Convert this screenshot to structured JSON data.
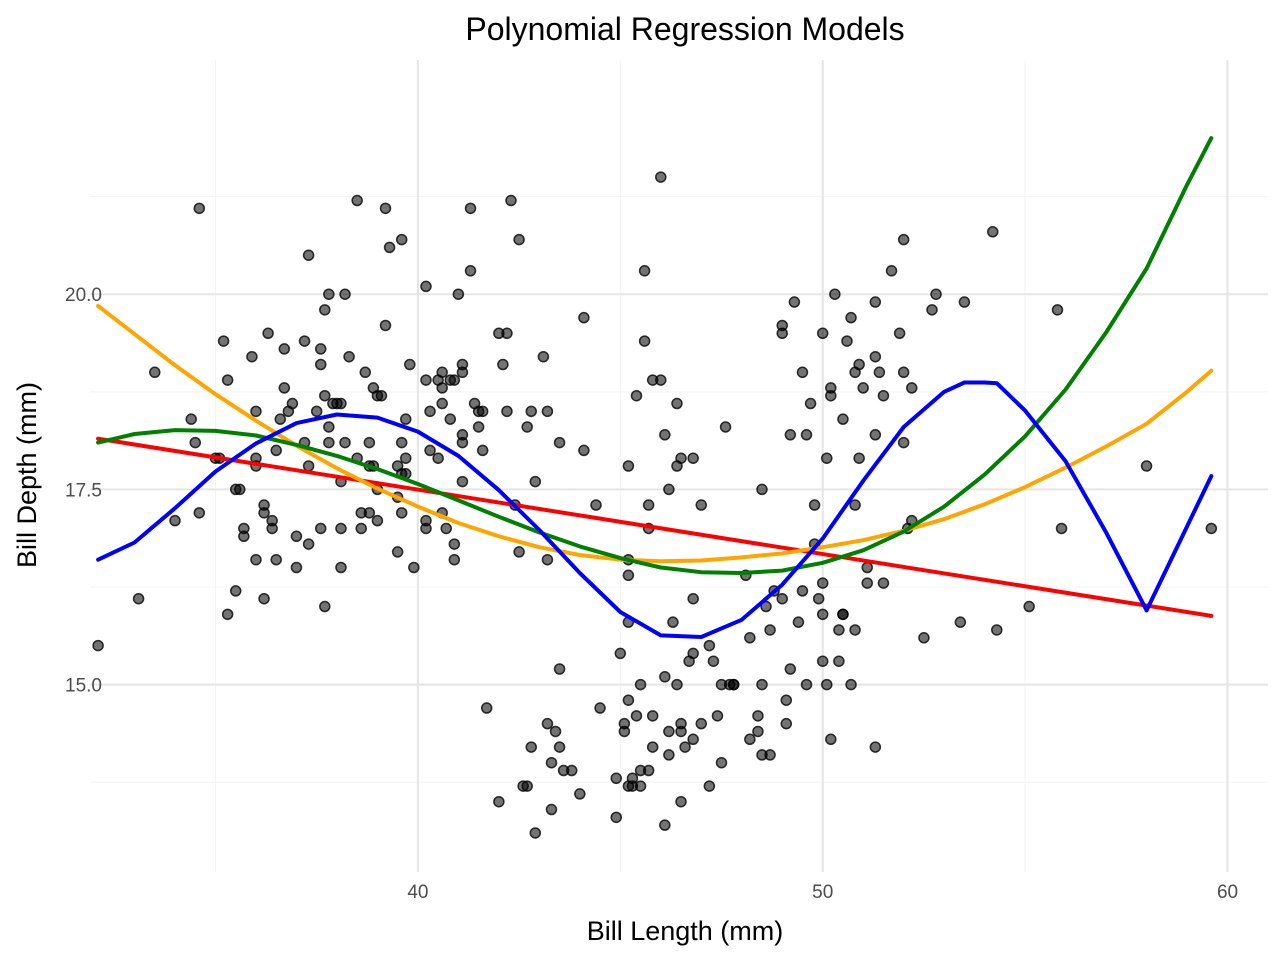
{
  "chart_data": {
    "type": "scatter",
    "title": "Polynomial Regression Models",
    "xlabel": "Bill Length (mm)",
    "ylabel": "Bill Depth (mm)",
    "xlim": [
      31.9,
      61.0
    ],
    "ylim": [
      12.6,
      23.0
    ],
    "x_ticks": [
      40,
      50,
      60
    ],
    "x_tick_labels": [
      "40",
      "50",
      "60"
    ],
    "y_ticks": [
      15.0,
      17.5,
      20.0
    ],
    "y_tick_labels": [
      "15.0",
      "17.5",
      "20.0"
    ],
    "grid": true,
    "legend": "none",
    "point_color": "#000000",
    "points": [
      [
        32.1,
        15.5
      ],
      [
        33.1,
        16.1
      ],
      [
        33.5,
        19.0
      ],
      [
        34.0,
        17.1
      ],
      [
        34.4,
        18.4
      ],
      [
        34.5,
        18.1
      ],
      [
        34.6,
        21.1
      ],
      [
        34.6,
        17.2
      ],
      [
        35.0,
        17.9
      ],
      [
        35.1,
        17.9
      ],
      [
        35.2,
        19.4
      ],
      [
        35.3,
        18.9
      ],
      [
        35.3,
        15.9
      ],
      [
        35.5,
        16.2
      ],
      [
        35.5,
        17.5
      ],
      [
        35.6,
        17.5
      ],
      [
        35.7,
        16.9
      ],
      [
        35.7,
        17.0
      ],
      [
        35.9,
        19.2
      ],
      [
        36.0,
        18.5
      ],
      [
        36.0,
        17.8
      ],
      [
        36.0,
        16.6
      ],
      [
        36.0,
        17.9
      ],
      [
        36.2,
        17.3
      ],
      [
        36.2,
        17.2
      ],
      [
        36.2,
        16.1
      ],
      [
        36.3,
        19.5
      ],
      [
        36.4,
        17.1
      ],
      [
        36.4,
        17.0
      ],
      [
        36.5,
        16.6
      ],
      [
        36.5,
        18.0
      ],
      [
        36.6,
        18.4
      ],
      [
        36.7,
        18.8
      ],
      [
        36.7,
        19.3
      ],
      [
        36.8,
        18.5
      ],
      [
        36.9,
        18.6
      ],
      [
        37.0,
        16.9
      ],
      [
        37.0,
        16.5
      ],
      [
        37.2,
        18.1
      ],
      [
        37.2,
        19.4
      ],
      [
        37.3,
        20.5
      ],
      [
        37.3,
        16.8
      ],
      [
        37.3,
        17.8
      ],
      [
        37.5,
        18.5
      ],
      [
        37.6,
        17.0
      ],
      [
        37.6,
        19.3
      ],
      [
        37.6,
        19.1
      ],
      [
        37.7,
        18.7
      ],
      [
        37.7,
        19.8
      ],
      [
        37.7,
        16.0
      ],
      [
        37.8,
        20.0
      ],
      [
        37.8,
        18.1
      ],
      [
        37.8,
        18.3
      ],
      [
        37.9,
        18.6
      ],
      [
        38.0,
        18.6
      ],
      [
        38.1,
        18.6
      ],
      [
        38.1,
        17.0
      ],
      [
        38.1,
        16.5
      ],
      [
        38.1,
        17.6
      ],
      [
        38.2,
        20.0
      ],
      [
        38.2,
        18.1
      ],
      [
        38.3,
        19.2
      ],
      [
        38.5,
        17.9
      ],
      [
        38.5,
        21.2
      ],
      [
        38.6,
        17.2
      ],
      [
        38.6,
        17.0
      ],
      [
        38.7,
        19.0
      ],
      [
        38.8,
        18.1
      ],
      [
        38.8,
        17.2
      ],
      [
        38.8,
        17.8
      ],
      [
        38.9,
        18.8
      ],
      [
        38.9,
        17.8
      ],
      [
        39.0,
        18.7
      ],
      [
        39.0,
        17.5
      ],
      [
        39.0,
        17.1
      ],
      [
        39.1,
        18.7
      ],
      [
        39.2,
        19.6
      ],
      [
        39.2,
        21.1
      ],
      [
        39.3,
        20.6
      ],
      [
        39.5,
        16.7
      ],
      [
        39.5,
        17.4
      ],
      [
        39.5,
        17.8
      ],
      [
        39.6,
        18.1
      ],
      [
        39.6,
        20.7
      ],
      [
        39.6,
        17.7
      ],
      [
        39.6,
        17.2
      ],
      [
        39.7,
        18.4
      ],
      [
        39.7,
        17.9
      ],
      [
        39.7,
        17.7
      ],
      [
        39.8,
        19.1
      ],
      [
        39.9,
        16.5
      ],
      [
        40.2,
        18.9
      ],
      [
        40.2,
        17.0
      ],
      [
        40.2,
        17.1
      ],
      [
        40.2,
        20.1
      ],
      [
        40.3,
        18.0
      ],
      [
        40.3,
        18.5
      ],
      [
        40.5,
        17.9
      ],
      [
        40.5,
        18.9
      ],
      [
        40.6,
        18.6
      ],
      [
        40.6,
        19.0
      ],
      [
        40.6,
        17.2
      ],
      [
        40.6,
        18.8
      ],
      [
        40.7,
        17.0
      ],
      [
        40.8,
        18.4
      ],
      [
        40.8,
        18.9
      ],
      [
        40.9,
        16.8
      ],
      [
        40.9,
        16.6
      ],
      [
        40.9,
        18.9
      ],
      [
        41.0,
        20.0
      ],
      [
        41.1,
        18.2
      ],
      [
        41.1,
        17.6
      ],
      [
        41.1,
        19.0
      ],
      [
        41.1,
        19.1
      ],
      [
        41.1,
        18.1
      ],
      [
        41.3,
        20.3
      ],
      [
        41.3,
        21.1
      ],
      [
        41.4,
        18.6
      ],
      [
        41.5,
        18.3
      ],
      [
        41.5,
        18.5
      ],
      [
        41.6,
        18.5
      ],
      [
        41.6,
        18.0
      ],
      [
        41.7,
        14.7
      ],
      [
        42.0,
        19.5
      ],
      [
        42.0,
        13.5
      ],
      [
        42.1,
        19.1
      ],
      [
        42.2,
        19.5
      ],
      [
        42.2,
        18.5
      ],
      [
        42.3,
        21.2
      ],
      [
        42.4,
        17.3
      ],
      [
        42.5,
        20.7
      ],
      [
        42.5,
        16.7
      ],
      [
        42.6,
        13.7
      ],
      [
        42.7,
        18.3
      ],
      [
        42.7,
        13.7
      ],
      [
        42.8,
        18.5
      ],
      [
        42.8,
        14.2
      ],
      [
        42.9,
        17.6
      ],
      [
        42.9,
        13.1
      ],
      [
        43.1,
        19.2
      ],
      [
        43.2,
        18.5
      ],
      [
        43.2,
        16.6
      ],
      [
        43.2,
        14.5
      ],
      [
        43.3,
        13.4
      ],
      [
        43.3,
        14.0
      ],
      [
        43.4,
        14.4
      ],
      [
        43.5,
        18.1
      ],
      [
        43.5,
        15.2
      ],
      [
        43.5,
        14.2
      ],
      [
        43.6,
        13.9
      ],
      [
        43.8,
        13.9
      ],
      [
        44.0,
        13.6
      ],
      [
        44.1,
        18.0
      ],
      [
        44.1,
        19.7
      ],
      [
        44.4,
        17.3
      ],
      [
        44.5,
        14.7
      ],
      [
        44.9,
        13.3
      ],
      [
        44.9,
        13.8
      ],
      [
        45.0,
        15.4
      ],
      [
        45.1,
        14.4
      ],
      [
        45.1,
        14.5
      ],
      [
        45.2,
        17.8
      ],
      [
        45.2,
        16.6
      ],
      [
        45.2,
        16.4
      ],
      [
        45.2,
        15.8
      ],
      [
        45.2,
        14.8
      ],
      [
        45.2,
        13.7
      ],
      [
        45.3,
        13.7
      ],
      [
        45.3,
        13.8
      ],
      [
        45.4,
        14.6
      ],
      [
        45.4,
        18.7
      ],
      [
        45.5,
        13.7
      ],
      [
        45.5,
        15.0
      ],
      [
        45.5,
        13.9
      ],
      [
        45.6,
        19.4
      ],
      [
        45.6,
        20.3
      ],
      [
        45.7,
        17.0
      ],
      [
        45.7,
        17.3
      ],
      [
        45.7,
        13.9
      ],
      [
        45.8,
        14.6
      ],
      [
        45.8,
        14.2
      ],
      [
        45.8,
        18.9
      ],
      [
        46.0,
        18.9
      ],
      [
        46.0,
        21.5
      ],
      [
        46.1,
        13.2
      ],
      [
        46.1,
        15.1
      ],
      [
        46.1,
        18.2
      ],
      [
        46.2,
        14.4
      ],
      [
        46.2,
        17.5
      ],
      [
        46.2,
        14.1
      ],
      [
        46.3,
        15.8
      ],
      [
        46.4,
        15.0
      ],
      [
        46.4,
        18.6
      ],
      [
        46.4,
        17.8
      ],
      [
        46.5,
        14.4
      ],
      [
        46.5,
        13.5
      ],
      [
        46.5,
        14.5
      ],
      [
        46.5,
        17.9
      ],
      [
        46.6,
        14.2
      ],
      [
        46.7,
        15.3
      ],
      [
        46.8,
        16.1
      ],
      [
        46.8,
        15.4
      ],
      [
        46.8,
        14.3
      ],
      [
        46.8,
        17.9
      ],
      [
        47.0,
        17.3
      ],
      [
        47.0,
        14.5
      ],
      [
        47.2,
        13.7
      ],
      [
        47.2,
        15.5
      ],
      [
        47.3,
        15.3
      ],
      [
        47.4,
        14.6
      ],
      [
        47.5,
        14.0
      ],
      [
        47.5,
        15.0
      ],
      [
        47.6,
        18.3
      ],
      [
        47.7,
        15.0
      ],
      [
        47.8,
        15.0
      ],
      [
        47.8,
        15.0
      ],
      [
        48.1,
        16.4
      ],
      [
        48.2,
        14.3
      ],
      [
        48.2,
        15.6
      ],
      [
        48.4,
        14.4
      ],
      [
        48.4,
        14.6
      ],
      [
        48.5,
        17.5
      ],
      [
        48.5,
        14.1
      ],
      [
        48.5,
        15.0
      ],
      [
        48.6,
        16.0
      ],
      [
        48.7,
        14.1
      ],
      [
        48.7,
        15.7
      ],
      [
        48.8,
        16.2
      ],
      [
        49.0,
        19.5
      ],
      [
        49.0,
        19.6
      ],
      [
        49.0,
        16.1
      ],
      [
        49.1,
        14.5
      ],
      [
        49.1,
        14.8
      ],
      [
        49.2,
        18.2
      ],
      [
        49.2,
        15.2
      ],
      [
        49.3,
        19.9
      ],
      [
        49.4,
        15.8
      ],
      [
        49.5,
        16.2
      ],
      [
        49.5,
        19.0
      ],
      [
        49.6,
        18.2
      ],
      [
        49.6,
        15.0
      ],
      [
        49.7,
        18.6
      ],
      [
        49.8,
        17.3
      ],
      [
        49.8,
        16.8
      ],
      [
        49.9,
        16.1
      ],
      [
        50.0,
        15.9
      ],
      [
        50.0,
        16.3
      ],
      [
        50.0,
        15.3
      ],
      [
        50.0,
        19.5
      ],
      [
        50.1,
        17.9
      ],
      [
        50.1,
        15.0
      ],
      [
        50.2,
        18.8
      ],
      [
        50.2,
        18.7
      ],
      [
        50.2,
        14.3
      ],
      [
        50.3,
        20.0
      ],
      [
        50.4,
        15.7
      ],
      [
        50.4,
        15.3
      ],
      [
        50.5,
        15.9
      ],
      [
        50.5,
        15.9
      ],
      [
        50.5,
        18.4
      ],
      [
        50.6,
        19.4
      ],
      [
        50.7,
        19.7
      ],
      [
        50.7,
        15.0
      ],
      [
        50.8,
        15.7
      ],
      [
        50.8,
        17.3
      ],
      [
        50.8,
        19.0
      ],
      [
        50.9,
        17.9
      ],
      [
        50.9,
        19.1
      ],
      [
        51.0,
        18.8
      ],
      [
        51.1,
        16.5
      ],
      [
        51.1,
        16.3
      ],
      [
        51.3,
        18.2
      ],
      [
        51.3,
        19.2
      ],
      [
        51.3,
        19.9
      ],
      [
        51.3,
        14.2
      ],
      [
        51.4,
        19.0
      ],
      [
        51.5,
        18.7
      ],
      [
        51.5,
        16.3
      ],
      [
        51.7,
        20.3
      ],
      [
        51.9,
        19.5
      ],
      [
        52.0,
        18.1
      ],
      [
        52.0,
        19.0
      ],
      [
        52.0,
        20.7
      ],
      [
        52.1,
        17.0
      ],
      [
        52.2,
        17.1
      ],
      [
        52.2,
        18.8
      ],
      [
        52.5,
        15.6
      ],
      [
        52.7,
        19.8
      ],
      [
        52.8,
        20.0
      ],
      [
        53.4,
        15.8
      ],
      [
        53.5,
        19.9
      ],
      [
        54.2,
        20.8
      ],
      [
        54.3,
        15.7
      ],
      [
        55.1,
        16.0
      ],
      [
        55.8,
        19.8
      ],
      [
        55.9,
        17.0
      ],
      [
        58.0,
        17.8
      ],
      [
        59.6,
        17.0
      ]
    ],
    "series": [
      {
        "color": "#ff0000",
        "x": [
          32.1,
          59.6
        ],
        "y": [
          18.15,
          15.88
        ]
      },
      {
        "color": "#ffa500",
        "x": [
          32.1,
          33.1,
          34.0,
          35.0,
          36.0,
          37.0,
          38.0,
          39.0,
          40.0,
          41.0,
          42.0,
          43.0,
          44.0,
          45.0,
          46.0,
          47.0,
          48.0,
          49.0,
          50.0,
          51.0,
          52.0,
          53.0,
          54.0,
          55.0,
          56.0,
          57.0,
          58.0,
          59.0,
          59.6
        ],
        "y": [
          19.85,
          19.45,
          19.09,
          18.72,
          18.38,
          18.06,
          17.77,
          17.51,
          17.28,
          17.07,
          16.9,
          16.76,
          16.66,
          16.6,
          16.58,
          16.59,
          16.63,
          16.68,
          16.76,
          16.85,
          16.97,
          17.12,
          17.31,
          17.53,
          17.78,
          18.05,
          18.34,
          18.75,
          19.02
        ]
      },
      {
        "color": "#008000",
        "x": [
          32.1,
          33.0,
          34.0,
          35.0,
          36.0,
          37.0,
          38.0,
          39.0,
          40.0,
          41.0,
          42.0,
          43.0,
          44.0,
          45.0,
          46.0,
          47.0,
          48.0,
          49.0,
          50.0,
          51.0,
          52.0,
          53.0,
          54.0,
          55.0,
          56.0,
          57.0,
          58.0,
          59.0,
          59.6
        ],
        "y": [
          18.1,
          18.21,
          18.26,
          18.25,
          18.19,
          18.07,
          17.93,
          17.76,
          17.57,
          17.36,
          17.15,
          16.95,
          16.77,
          16.62,
          16.5,
          16.44,
          16.43,
          16.46,
          16.56,
          16.72,
          16.96,
          17.28,
          17.69,
          18.18,
          18.78,
          19.51,
          20.33,
          21.4,
          22.0
        ]
      },
      {
        "color": "#0000ff",
        "x": [
          32.1,
          33.0,
          34.0,
          35.0,
          36.0,
          37.0,
          38.0,
          39.0,
          40.0,
          41.0,
          42.0,
          43.0,
          44.0,
          45.0,
          46.0,
          47.0,
          48.0,
          49.0,
          50.0,
          51.0,
          52.0,
          53.0,
          53.5,
          54.0,
          54.3,
          55.0,
          56.0,
          57.0,
          58.0,
          59.6
        ],
        "y": [
          16.6,
          16.82,
          17.26,
          17.73,
          18.09,
          18.35,
          18.46,
          18.42,
          18.24,
          17.93,
          17.49,
          16.98,
          16.43,
          15.93,
          15.63,
          15.61,
          15.83,
          16.28,
          16.87,
          17.61,
          18.3,
          18.75,
          18.87,
          18.87,
          18.86,
          18.51,
          17.86,
          16.95,
          15.95,
          17.67
        ]
      }
    ]
  }
}
